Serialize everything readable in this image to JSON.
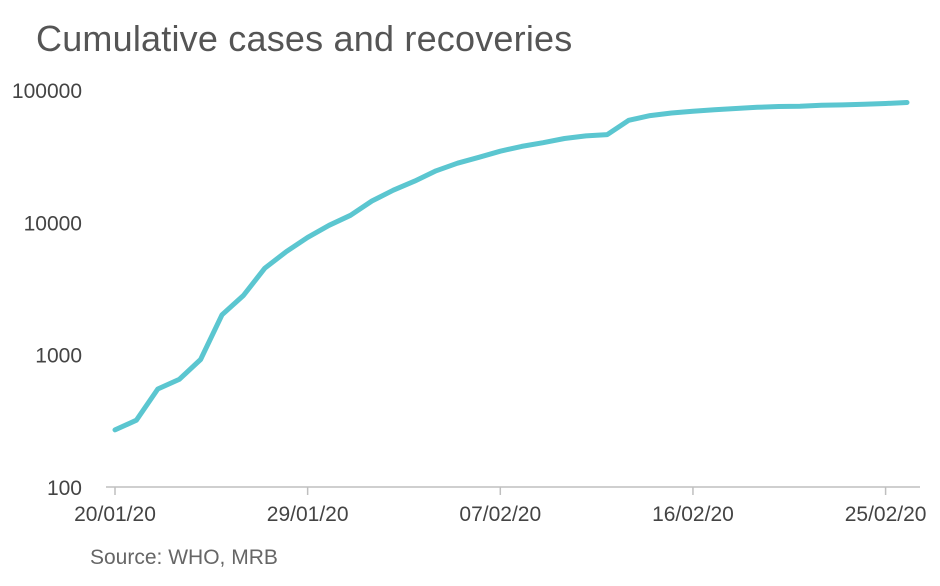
{
  "title": "Cumulative cases and recoveries",
  "source": "Source: WHO, MRB",
  "colors": {
    "line": "#5bc6d0",
    "axis": "#bfbfbf",
    "text": "#444444"
  },
  "chart_data": {
    "type": "line",
    "title": "Cumulative cases and recoveries",
    "xlabel": "",
    "ylabel": "",
    "y_scale": "log",
    "ylim": [
      100,
      100000
    ],
    "grid": false,
    "y_ticks": [
      100,
      1000,
      10000,
      100000
    ],
    "y_tick_labels": [
      "100",
      "1000",
      "10000",
      "100000"
    ],
    "x_tick_labels": [
      "20/01/20",
      "29/01/20",
      "07/02/20",
      "16/02/20",
      "25/02/20"
    ],
    "x": [
      "20/01/20",
      "21/01/20",
      "22/01/20",
      "23/01/20",
      "24/01/20",
      "25/01/20",
      "26/01/20",
      "27/01/20",
      "28/01/20",
      "29/01/20",
      "30/01/20",
      "31/01/20",
      "01/02/20",
      "02/02/20",
      "03/02/20",
      "04/02/20",
      "05/02/20",
      "06/02/20",
      "07/02/20",
      "08/02/20",
      "09/02/20",
      "10/02/20",
      "11/02/20",
      "12/02/20",
      "13/02/20",
      "14/02/20",
      "15/02/20",
      "16/02/20",
      "17/02/20",
      "18/02/20",
      "19/02/20",
      "20/02/20",
      "21/02/20",
      "22/02/20",
      "23/02/20",
      "24/02/20",
      "25/02/20",
      "26/02/20"
    ],
    "series": [
      {
        "values": [
          270,
          320,
          550,
          650,
          920,
          2000,
          2800,
          4500,
          6000,
          7700,
          9500,
          11300,
          14500,
          17500,
          20500,
          24500,
          28000,
          31000,
          34500,
          37500,
          40000,
          43000,
          45000,
          46000,
          59000,
          64000,
          67000,
          69000,
          71000,
          72500,
          74000,
          75000,
          75500,
          76700,
          77200,
          78000,
          79000,
          80500
        ]
      }
    ]
  }
}
